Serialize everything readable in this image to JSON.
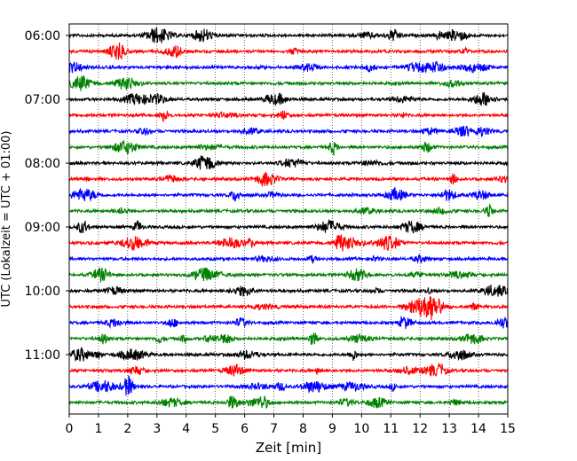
{
  "chart_data": {
    "type": "line",
    "title": "",
    "xlabel": "Zeit  [min]",
    "ylabel": "UTC (Lokalzeit = UTC + 01:00)",
    "xlim": [
      0,
      15
    ],
    "x_ticks": [
      0,
      1,
      2,
      3,
      4,
      5,
      6,
      7,
      8,
      9,
      10,
      11,
      12,
      13,
      14,
      15
    ],
    "y_tick_labels": [
      "06:00",
      "07:00",
      "08:00",
      "09:00",
      "10:00",
      "11:00"
    ],
    "grid": "vertical dotted",
    "trace_interval_min": 15,
    "trace_colors": [
      "#000000",
      "#ff0000",
      "#0000ff",
      "#008000"
    ],
    "traces": [
      {
        "start": "06:00",
        "color": "#000000"
      },
      {
        "start": "06:15",
        "color": "#ff0000"
      },
      {
        "start": "06:30",
        "color": "#0000ff"
      },
      {
        "start": "06:45",
        "color": "#008000"
      },
      {
        "start": "07:00",
        "color": "#000000"
      },
      {
        "start": "07:15",
        "color": "#ff0000"
      },
      {
        "start": "07:30",
        "color": "#0000ff"
      },
      {
        "start": "07:45",
        "color": "#008000"
      },
      {
        "start": "08:00",
        "color": "#000000"
      },
      {
        "start": "08:15",
        "color": "#ff0000"
      },
      {
        "start": "08:30",
        "color": "#0000ff"
      },
      {
        "start": "08:45",
        "color": "#008000"
      },
      {
        "start": "09:00",
        "color": "#000000"
      },
      {
        "start": "09:15",
        "color": "#ff0000"
      },
      {
        "start": "09:30",
        "color": "#0000ff"
      },
      {
        "start": "09:45",
        "color": "#008000"
      },
      {
        "start": "10:00",
        "color": "#000000"
      },
      {
        "start": "10:15",
        "color": "#ff0000"
      },
      {
        "start": "10:30",
        "color": "#0000ff"
      },
      {
        "start": "10:45",
        "color": "#008000"
      },
      {
        "start": "11:00",
        "color": "#000000"
      },
      {
        "start": "11:15",
        "color": "#ff0000"
      },
      {
        "start": "11:30",
        "color": "#0000ff"
      },
      {
        "start": "11:45",
        "color": "#008000"
      }
    ]
  }
}
